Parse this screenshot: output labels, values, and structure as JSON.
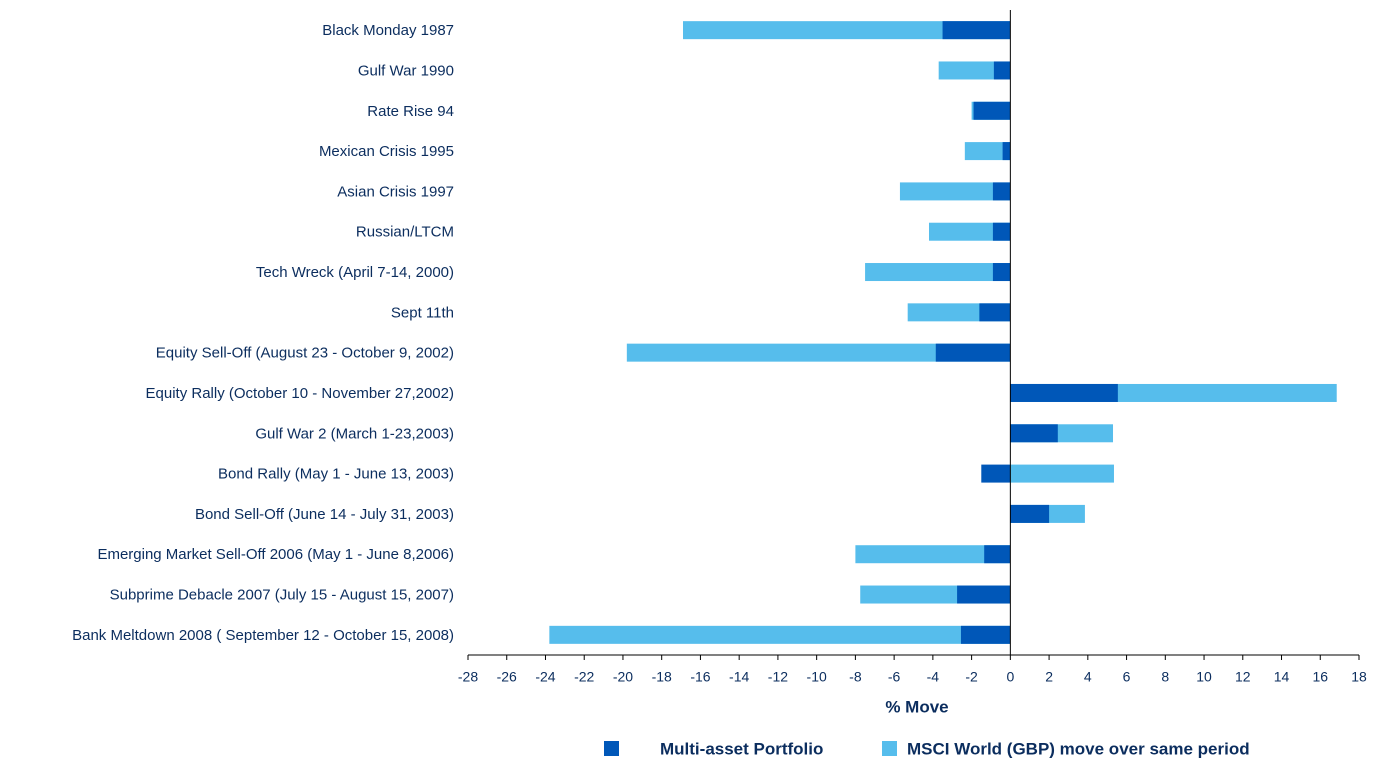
{
  "chart_data": {
    "type": "bar",
    "orientation": "horizontal",
    "overlap": true,
    "xlabel": "% Move",
    "categories": [
      "Black Monday 1987",
      "Gulf War 1990",
      "Rate Rise 94",
      "Mexican Crisis 1995",
      "Asian Crisis 1997",
      "Russian/LTCM",
      "Tech Wreck (April 7-14, 2000)",
      "Sept 11th",
      "Equity Sell-Off (August 23 - October 9, 2002)",
      "Equity Rally (October 10 - November 27,2002)",
      "Gulf War 2 (March 1-23,2003)",
      "Bond Rally (May 1 - June 13, 2003)",
      "Bond Sell-Off (June 14 - July 31, 2003)",
      "Emerging Market Sell-Off 2006 (May 1 - June 8,2006)",
      "Subprime Debacle 2007 (July 15 - August 15, 2007)",
      "Bank Meltdown 2008 ( September 12 - October 15, 2008)"
    ],
    "series": [
      {
        "name": "MSCI World (GBP) move over same period",
        "color": "#56bdec",
        "values": [
          -16.9,
          -3.7,
          -2.0,
          -2.35,
          -5.7,
          -4.2,
          -7.5,
          -5.3,
          -19.8,
          16.85,
          5.3,
          5.35,
          3.85,
          -8.0,
          -7.75,
          -23.8
        ]
      },
      {
        "name": "Multi-asset Portfolio",
        "color": "#0057b8",
        "values": [
          -3.5,
          -0.85,
          -1.9,
          -0.4,
          -0.9,
          -0.9,
          -0.9,
          -1.6,
          -3.85,
          5.55,
          2.45,
          -1.5,
          2.0,
          -1.35,
          -2.75,
          -2.55
        ]
      }
    ],
    "xlim": [
      -28,
      18
    ],
    "xticks": [
      -28,
      -26,
      -24,
      -22,
      -20,
      -18,
      -16,
      -14,
      -12,
      -10,
      -8,
      -6,
      -4,
      -2,
      0,
      2,
      4,
      6,
      8,
      10,
      12,
      14,
      16,
      18
    ]
  }
}
